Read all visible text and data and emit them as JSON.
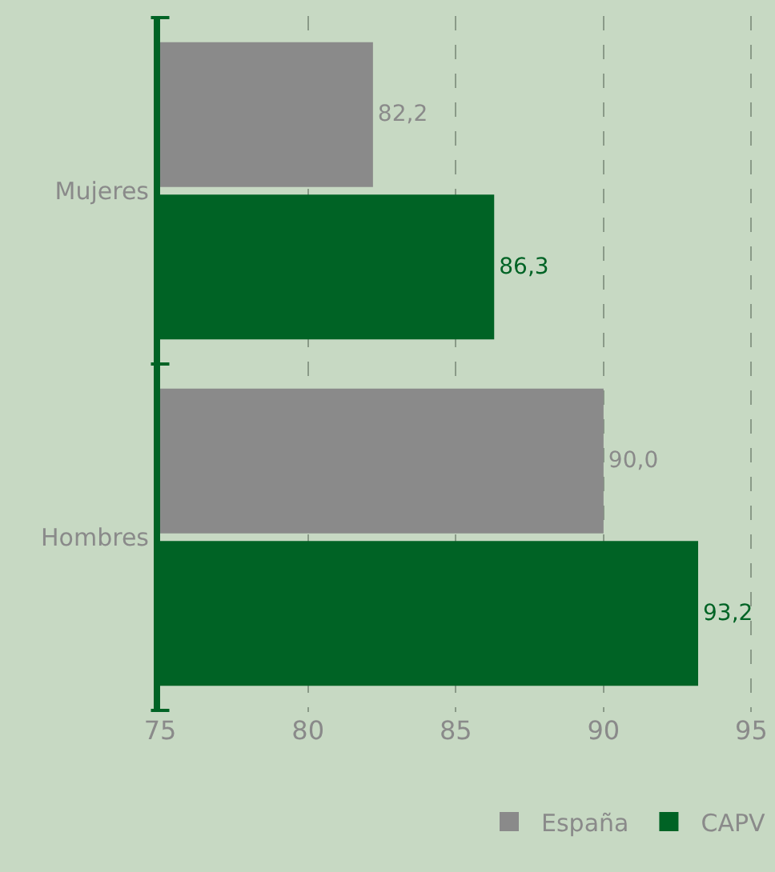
{
  "chart_data": {
    "type": "bar",
    "orientation": "horizontal",
    "categories": [
      "Mujeres",
      "Hombres"
    ],
    "series": [
      {
        "name": "España",
        "color": "#8a8a8a",
        "values": [
          82.2,
          90.0
        ],
        "value_labels": [
          "82,2",
          "90,0"
        ]
      },
      {
        "name": "CAPV",
        "color": "#006325",
        "values": [
          86.3,
          93.2
        ],
        "value_labels": [
          "86,3",
          "93,2"
        ]
      }
    ],
    "xlim": [
      75,
      95.8
    ],
    "xticks": [
      75,
      80,
      85,
      90,
      95
    ],
    "grid": "x",
    "legend": "bottom right"
  }
}
